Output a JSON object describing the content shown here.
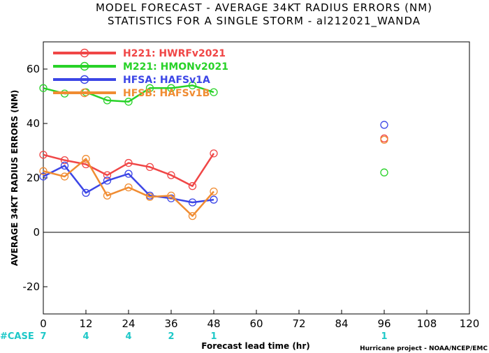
{
  "chart_data": {
    "type": "line",
    "title": "MODEL FORECAST - AVERAGE 34KT RADIUS ERRORS (NM)",
    "subtitle": "STATISTICS FOR A SINGLE STORM - al212021_WANDA",
    "xlabel": "Forecast lead time (hr)",
    "ylabel": "AVERAGE 34KT RADIUS ERRORS (NM)",
    "xlim": [
      0,
      120
    ],
    "ylim": [
      -30,
      70
    ],
    "x_ticks": [
      0,
      12,
      24,
      36,
      48,
      60,
      72,
      84,
      96,
      108,
      120
    ],
    "y_ticks": [
      -20,
      0,
      20,
      40,
      60
    ],
    "case_label": "#CASE",
    "case_counts": [
      {
        "x": 0,
        "label": "7"
      },
      {
        "x": 12,
        "label": "4"
      },
      {
        "x": 24,
        "label": "4"
      },
      {
        "x": 36,
        "label": "2"
      },
      {
        "x": 48,
        "label": "1"
      },
      {
        "x": 96,
        "label": "1"
      }
    ],
    "credit": "Hurricane project - NOAA/NCEP/EMC",
    "series": [
      {
        "name": "H221: HWRFv2021",
        "color": "#f04646",
        "line": [
          [
            0,
            28.5
          ],
          [
            6,
            26.5
          ],
          [
            12,
            25
          ],
          [
            18,
            21
          ],
          [
            24,
            25.5
          ],
          [
            30,
            24
          ],
          [
            36,
            21
          ],
          [
            42,
            17
          ],
          [
            48,
            29
          ]
        ],
        "isolated": [
          [
            96,
            34.5
          ]
        ]
      },
      {
        "name": "M221: HMONv2021",
        "color": "#28d228",
        "line": [
          [
            0,
            53
          ],
          [
            6,
            51
          ],
          [
            12,
            51.5
          ],
          [
            18,
            48.5
          ],
          [
            24,
            48
          ],
          [
            30,
            53
          ],
          [
            36,
            53
          ],
          [
            42,
            54
          ],
          [
            48,
            51.5
          ]
        ],
        "isolated": [
          [
            96,
            22
          ]
        ]
      },
      {
        "name": "HFSA: HAFSv1A",
        "color": "#3c46e6",
        "line": [
          [
            0,
            20.5
          ],
          [
            6,
            24.5
          ],
          [
            12,
            14.5
          ],
          [
            18,
            19
          ],
          [
            24,
            21.5
          ],
          [
            30,
            13.5
          ],
          [
            36,
            12.5
          ],
          [
            42,
            11
          ],
          [
            48,
            12
          ]
        ],
        "isolated": [
          [
            96,
            39.5
          ]
        ]
      },
      {
        "name": "HFSB: HAFSv1B",
        "color": "#f08c32",
        "line": [
          [
            0,
            22.5
          ],
          [
            6,
            20.5
          ],
          [
            12,
            27
          ],
          [
            18,
            13.5
          ],
          [
            24,
            16.5
          ],
          [
            30,
            13
          ],
          [
            36,
            13.5
          ],
          [
            42,
            6
          ],
          [
            48,
            15
          ]
        ],
        "isolated": [
          [
            96,
            34
          ]
        ]
      }
    ],
    "legend_position": "top-left",
    "zero_line": true
  }
}
